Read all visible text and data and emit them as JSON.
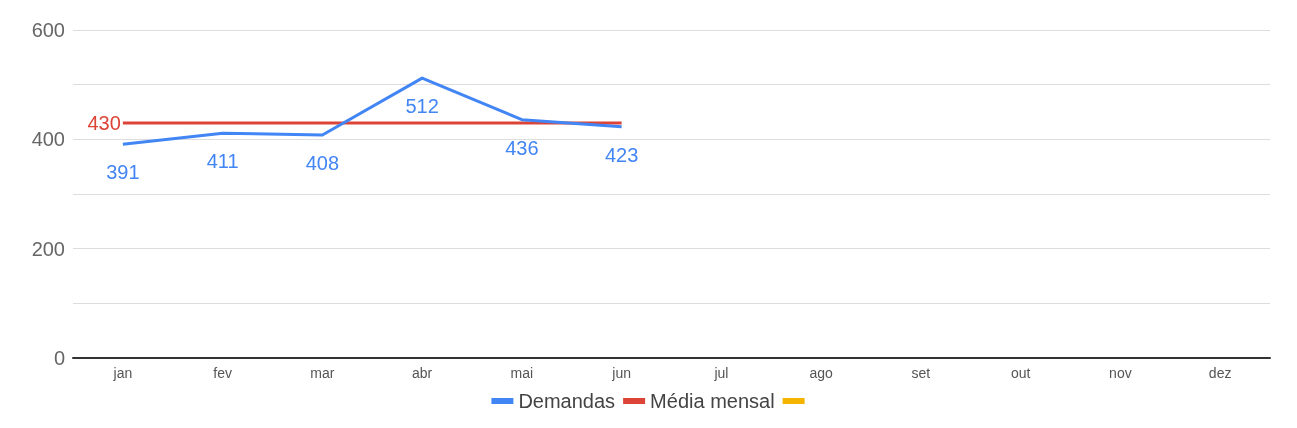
{
  "chart_data": {
    "type": "line",
    "categories": [
      "jan",
      "fev",
      "mar",
      "abr",
      "mai",
      "jun",
      "jul",
      "ago",
      "set",
      "out",
      "nov",
      "dez"
    ],
    "series": [
      {
        "name": "Demandas",
        "color": "#4285f4",
        "values": [
          391,
          411,
          408,
          512,
          436,
          423,
          null,
          null,
          null,
          null,
          null,
          null
        ],
        "value_labels": [
          "391",
          "411",
          "408",
          "512",
          "436",
          "423",
          null,
          null,
          null,
          null,
          null,
          null
        ]
      },
      {
        "name": "Média mensal",
        "color": "#db4437",
        "values": [
          430,
          430,
          430,
          430,
          430,
          430,
          null,
          null,
          null,
          null,
          null,
          null
        ],
        "value_labels": [
          "430",
          null,
          null,
          null,
          null,
          null,
          null,
          null,
          null,
          null,
          null,
          null
        ]
      },
      {
        "color": "#f4b400",
        "values": [
          null,
          null,
          null,
          null,
          null,
          null,
          null,
          null,
          null,
          null,
          null,
          null
        ]
      }
    ],
    "ylim": [
      0,
      600
    ],
    "yticks": [
      0,
      {
        "value": 100,
        "label": null
      },
      200,
      {
        "value": 300,
        "label": null
      },
      400,
      {
        "value": 500,
        "label": null
      },
      600
    ],
    "grid": "y",
    "legend": "bottom",
    "marker": "none",
    "line_style": "solid"
  }
}
